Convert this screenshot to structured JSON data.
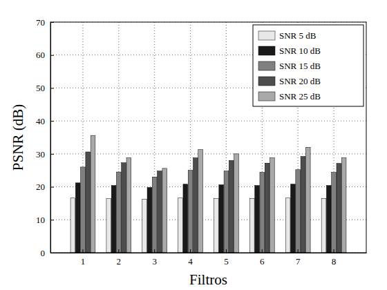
{
  "chart_data": {
    "type": "bar",
    "x_label": "Filtros",
    "y_label": "PSNR (dB)",
    "categories": [
      "1",
      "2",
      "3",
      "4",
      "5",
      "6",
      "7",
      "8"
    ],
    "series": [
      {
        "name": "SNR 5 dB",
        "color": "#e8e8e8",
        "values": [
          16.6,
          16.4,
          16.2,
          16.6,
          16.4,
          16.4,
          16.6,
          16.4
        ]
      },
      {
        "name": "SNR 10 dB",
        "color": "#1a1a1a",
        "values": [
          21.2,
          20.4,
          19.8,
          20.8,
          20.6,
          20.4,
          20.8,
          20.4
        ]
      },
      {
        "name": "SNR 15 dB",
        "color": "#808080",
        "values": [
          26.0,
          24.5,
          23.0,
          25.0,
          24.8,
          24.4,
          25.2,
          24.4
        ]
      },
      {
        "name": "SNR 20 dB",
        "color": "#4d4d4d",
        "values": [
          30.6,
          27.3,
          24.8,
          28.8,
          28.0,
          27.2,
          29.2,
          27.1
        ]
      },
      {
        "name": "SNR 25 dB",
        "color": "#a9a9a9",
        "values": [
          35.6,
          28.8,
          25.6,
          31.3,
          30.0,
          28.8,
          32.0,
          28.8
        ]
      }
    ],
    "ylim": [
      0,
      70
    ],
    "yticks": [
      0,
      10,
      20,
      30,
      40,
      50,
      60,
      70
    ],
    "grid": true,
    "legend": "upper-right"
  }
}
